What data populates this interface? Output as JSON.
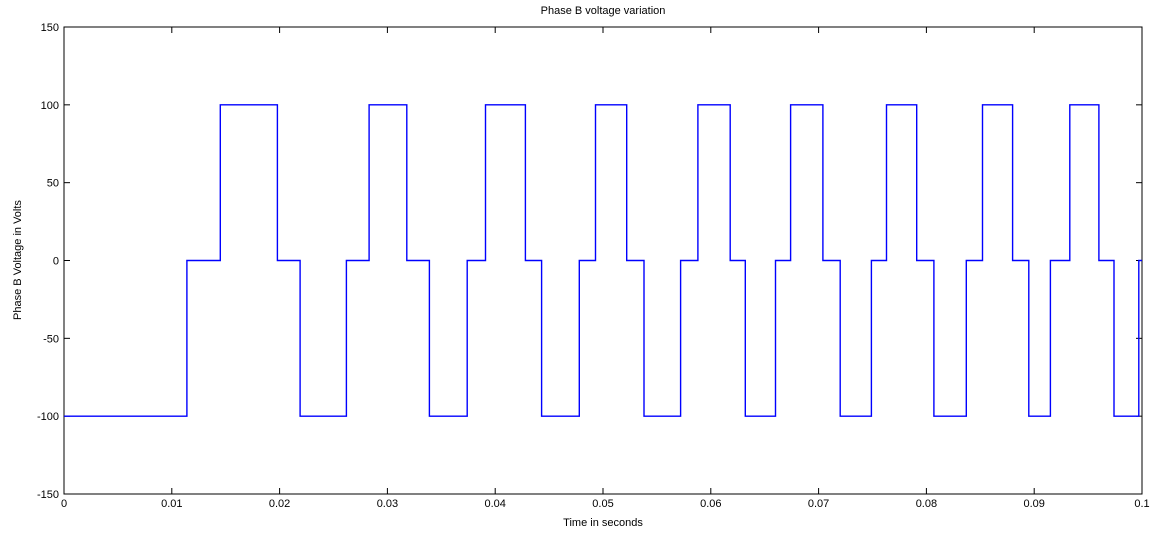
{
  "chart_data": {
    "type": "line",
    "title": "Phase B voltage variation",
    "xlabel": "Time in seconds",
    "ylabel": "Phase B Voltage in Volts",
    "xlim": [
      0,
      0.1
    ],
    "ylim": [
      -150,
      150
    ],
    "x_ticks": [
      0,
      0.01,
      0.02,
      0.03,
      0.04,
      0.05,
      0.06,
      0.07,
      0.08,
      0.09,
      0.1
    ],
    "x_tick_labels": [
      "0",
      "0.01",
      "0.02",
      "0.03",
      "0.04",
      "0.05",
      "0.06",
      "0.07",
      "0.08",
      "0.09",
      "0.1"
    ],
    "y_ticks": [
      -150,
      -100,
      -50,
      0,
      50,
      100,
      150
    ],
    "y_tick_labels": [
      "-150",
      "-100",
      "-50",
      "0",
      "50",
      "100",
      "150"
    ],
    "grid": false,
    "line_color": "#0000ff",
    "series": [
      {
        "x": [
          0,
          0.0114,
          0.0114,
          0.0145,
          0.0145,
          0.0198,
          0.0198,
          0.0219,
          0.0219,
          0.0262,
          0.0262,
          0.0283,
          0.0283,
          0.0318,
          0.0318,
          0.0339,
          0.0339,
          0.0374,
          0.0374,
          0.0391,
          0.0391,
          0.0428,
          0.0428,
          0.0443,
          0.0443,
          0.0478,
          0.0478,
          0.0493,
          0.0493,
          0.0522,
          0.0522,
          0.0538,
          0.0538,
          0.0572,
          0.0572,
          0.0588,
          0.0588,
          0.0618,
          0.0618,
          0.0632,
          0.0632,
          0.066,
          0.066,
          0.0674,
          0.0674,
          0.0704,
          0.0704,
          0.072,
          0.072,
          0.0749,
          0.0749,
          0.0763,
          0.0763,
          0.0791,
          0.0791,
          0.0807,
          0.0807,
          0.0837,
          0.0837,
          0.0852,
          0.0852,
          0.088,
          0.088,
          0.0895,
          0.0895,
          0.0915,
          0.0915,
          0.0933,
          0.0933,
          0.096,
          0.096,
          0.0974,
          0.0974,
          0.0997,
          0.0997,
          0.1
        ],
        "y": [
          -100,
          -100,
          0,
          0,
          100,
          100,
          0,
          0,
          -100,
          -100,
          0,
          0,
          100,
          100,
          0,
          0,
          -100,
          -100,
          0,
          0,
          100,
          100,
          0,
          0,
          -100,
          -100,
          0,
          0,
          100,
          100,
          0,
          0,
          -100,
          -100,
          0,
          0,
          100,
          100,
          0,
          0,
          -100,
          -100,
          0,
          0,
          100,
          100,
          0,
          0,
          -100,
          -100,
          0,
          0,
          100,
          100,
          0,
          0,
          -100,
          -100,
          0,
          0,
          100,
          100,
          0,
          0,
          -100,
          -100,
          0,
          0,
          100,
          100,
          0,
          0,
          -100,
          -100,
          0,
          0
        ]
      }
    ]
  }
}
